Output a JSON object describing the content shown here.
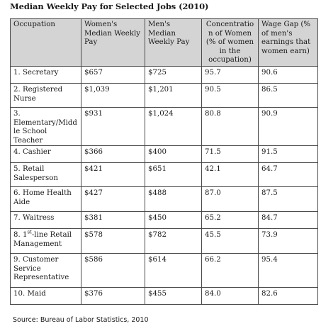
{
  "title": "Median Weekly Pay for Selected Jobs (2010)",
  "table": {
    "headers": {
      "occupation": "Occupation",
      "womens_pay": "Women's Median Weekly Pay",
      "mens_pay": "Men's Median Weekly Pay",
      "concentration": "Concentration of Women (% of women in the occupation)",
      "wage_gap": "Wage Gap (% of men's earnings that women earn)"
    },
    "rows": [
      {
        "occupation": "1. Secretary",
        "womens_pay": "$657",
        "mens_pay": "$725",
        "concentration": "95.7",
        "wage_gap": "90.6"
      },
      {
        "occupation": "2. Registered Nurse",
        "womens_pay": "$1,039",
        "mens_pay": "$1,201",
        "concentration": "90.5",
        "wage_gap": "86.5"
      },
      {
        "occupation": "3. Elementary/Middle School Teacher",
        "womens_pay": "$931",
        "mens_pay": "$1,024",
        "concentration": "80.8",
        "wage_gap": "90.9"
      },
      {
        "occupation": "4. Cashier",
        "womens_pay": "$366",
        "mens_pay": "$400",
        "concentration": "71.5",
        "wage_gap": "91.5"
      },
      {
        "occupation": "5. Retail Salesperson",
        "womens_pay": "$421",
        "mens_pay": "$651",
        "concentration": "42.1",
        "wage_gap": "64.7"
      },
      {
        "occupation": "6. Home Health Aide",
        "womens_pay": "$427",
        "mens_pay": "$488",
        "concentration": "87.0",
        "wage_gap": "87.5"
      },
      {
        "occupation": "7. Waitress",
        "womens_pay": "$381",
        "mens_pay": "$450",
        "concentration": "65.2",
        "wage_gap": "84.7"
      },
      {
        "occupation_prefix": "8. 1",
        "occupation_sup": "st",
        "occupation_suffix": "-line Retail Management",
        "womens_pay": "$578",
        "mens_pay": "$782",
        "concentration": "45.5",
        "wage_gap": "73.9"
      },
      {
        "occupation": "9. Customer Service Representative",
        "womens_pay": "$586",
        "mens_pay": "$614",
        "concentration": "66.2",
        "wage_gap": "95.4"
      },
      {
        "occupation": "10. Maid",
        "womens_pay": "$376",
        "mens_pay": "$455",
        "concentration": "84.0",
        "wage_gap": "82.6"
      }
    ]
  },
  "source": "Source: Bureau of Labor Statistics, 2010"
}
